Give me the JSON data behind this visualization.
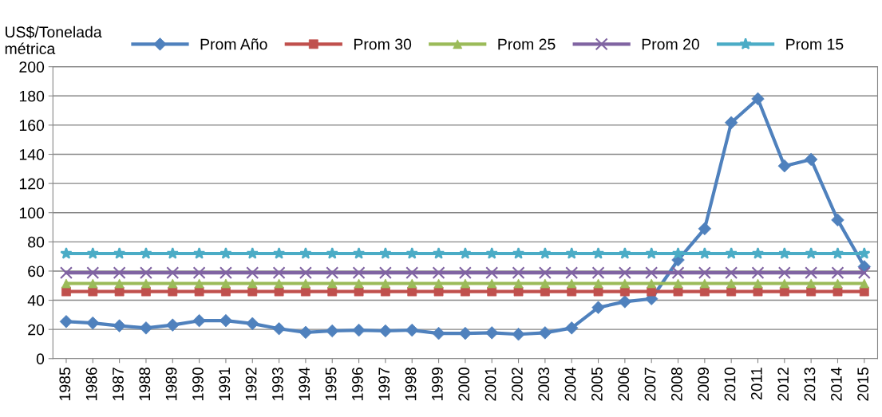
{
  "chart_data": {
    "type": "line",
    "ylabel": "US$/Tonelada\nmétrica",
    "categories": [
      "1985",
      "1986",
      "1987",
      "1988",
      "1989",
      "1990",
      "1991",
      "1992",
      "1993",
      "1994",
      "1995",
      "1996",
      "1997",
      "1998",
      "1999",
      "2000",
      "2001",
      "2002",
      "2003",
      "2004",
      "2005",
      "2006",
      "2007",
      "2008",
      "2009",
      "2010",
      "2011",
      "2012",
      "2013",
      "2014",
      "2015"
    ],
    "series": [
      {
        "name": "Prom Año",
        "color": "#4f81bd",
        "marker": "diamond",
        "values": [
          25.4,
          24.4,
          22.5,
          21,
          23,
          26,
          26,
          24,
          20.5,
          18,
          19,
          19.5,
          19,
          19.5,
          17.3,
          17.3,
          17.7,
          16.7,
          17.7,
          21,
          35,
          39,
          41,
          67.6,
          89,
          161.7,
          178,
          132,
          136.5,
          95,
          63
        ]
      },
      {
        "name": "Prom 30",
        "color": "#c0504d",
        "marker": "square",
        "values": [
          46,
          46,
          46,
          46,
          46,
          46,
          46,
          46,
          46,
          46,
          46,
          46,
          46,
          46,
          46,
          46,
          46,
          46,
          46,
          46,
          46,
          46,
          46,
          46,
          46,
          46,
          46,
          46,
          46,
          46,
          46
        ]
      },
      {
        "name": "Prom 25",
        "color": "#9bbb59",
        "marker": "triangle",
        "values": [
          51.5,
          51.5,
          51.5,
          51.5,
          51.5,
          51.5,
          51.5,
          51.5,
          51.5,
          51.5,
          51.5,
          51.5,
          51.5,
          51.5,
          51.5,
          51.5,
          51.5,
          51.5,
          51.5,
          51.5,
          51.5,
          51.5,
          51.5,
          51.5,
          51.5,
          51.5,
          51.5,
          51.5,
          51.5,
          51.5,
          51.5
        ]
      },
      {
        "name": "Prom 20",
        "color": "#8064a2",
        "marker": "cross",
        "values": [
          58.8,
          58.8,
          58.8,
          58.8,
          58.8,
          58.8,
          58.8,
          58.8,
          58.8,
          58.8,
          58.8,
          58.8,
          58.8,
          58.8,
          58.8,
          58.8,
          58.8,
          58.8,
          58.8,
          58.8,
          58.8,
          58.8,
          58.8,
          58.8,
          58.8,
          58.8,
          58.8,
          58.8,
          58.8,
          58.8,
          58.8
        ]
      },
      {
        "name": "Prom 15",
        "color": "#4bacc6",
        "marker": "star",
        "values": [
          72,
          72,
          72,
          72,
          72,
          72,
          72,
          72,
          72,
          72,
          72,
          72,
          72,
          72,
          72,
          72,
          72,
          72,
          72,
          72,
          72,
          72,
          72,
          72,
          72,
          72,
          72,
          72,
          72,
          72,
          72
        ]
      }
    ],
    "ylim": [
      0,
      200
    ],
    "yticks": [
      0,
      20,
      40,
      60,
      80,
      100,
      120,
      140,
      160,
      180,
      200
    ],
    "grid": "y",
    "legend": "top",
    "line_style": "solid"
  }
}
